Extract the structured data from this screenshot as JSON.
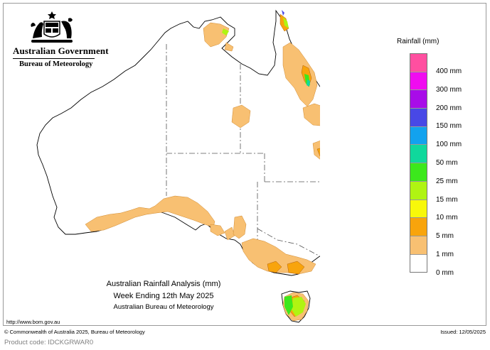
{
  "header": {
    "government": "Australian Government",
    "bureau": "Bureau of Meteorology"
  },
  "legend": {
    "title": "Rainfall (mm)",
    "classes": [
      {
        "label": "400 mm",
        "color": "#ff4fa0"
      },
      {
        "label": "300 mm",
        "color": "#f00cf0"
      },
      {
        "label": "200 mm",
        "color": "#a80ce8"
      },
      {
        "label": "150 mm",
        "color": "#4848e6"
      },
      {
        "label": "100 mm",
        "color": "#12a2ee"
      },
      {
        "label": "50 mm",
        "color": "#10d89c"
      },
      {
        "label": "25 mm",
        "color": "#3ce81c"
      },
      {
        "label": "15 mm",
        "color": "#b0f412"
      },
      {
        "label": "10 mm",
        "color": "#f8f80a"
      },
      {
        "label": "5 mm",
        "color": "#f8a40c"
      },
      {
        "label": "1 mm",
        "color": "#f8c072"
      },
      {
        "label": "0 mm",
        "color": "#ffffff"
      }
    ]
  },
  "map_title": {
    "line1": "Australian Rainfall Analysis (mm)",
    "line2": "Week Ending 12th May 2025",
    "line3": "Australian Bureau of Meteorology"
  },
  "footer": {
    "url": "http://www.bom.gov.au",
    "copyright": "© Commonwealth of Australia 2025, Bureau of Meteorology",
    "issued": "Issued: 12/05/2025",
    "product_code": "Product code: IDCKGRWAR0"
  },
  "colors": {
    "light_rain": "#f8c072",
    "moderate_rain": "#f8a40c",
    "coastline": "#000000",
    "border": "#555555"
  }
}
